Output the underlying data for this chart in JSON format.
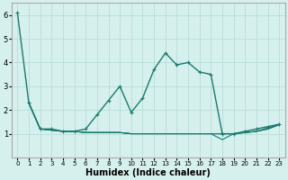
{
  "title": "",
  "xlabel": "Humidex (Indice chaleur)",
  "xlim": [
    -0.5,
    23.5
  ],
  "ylim": [
    0,
    6.5
  ],
  "yticks": [
    1,
    2,
    3,
    4,
    5,
    6
  ],
  "xticks": [
    0,
    1,
    2,
    3,
    4,
    5,
    6,
    7,
    8,
    9,
    10,
    11,
    12,
    13,
    14,
    15,
    16,
    17,
    18,
    19,
    20,
    21,
    22,
    23
  ],
  "bg_color": "#d6f0ed",
  "line_color": "#1a7a6e",
  "grid_color": "#b8ddd9",
  "lines": [
    {
      "x": [
        0,
        1,
        2,
        3,
        4,
        5,
        6,
        7,
        8,
        9,
        10,
        11,
        12,
        13,
        14,
        15,
        16,
        17,
        18,
        19,
        20,
        21,
        22,
        23
      ],
      "y": [
        6.1,
        2.3,
        1.2,
        1.2,
        1.1,
        1.1,
        1.2,
        1.8,
        2.4,
        3.0,
        1.9,
        2.5,
        3.7,
        4.4,
        3.9,
        4.0,
        3.6,
        3.5,
        1.0,
        1.0,
        1.1,
        1.2,
        1.3,
        1.4
      ],
      "has_marker": true
    },
    {
      "x": [
        1,
        2,
        3,
        4,
        5,
        6,
        7,
        8,
        9,
        10,
        11,
        12,
        13,
        14,
        15,
        16,
        17,
        18,
        19,
        20,
        21,
        22,
        23
      ],
      "y": [
        2.3,
        1.2,
        1.15,
        1.1,
        1.1,
        1.05,
        1.05,
        1.05,
        1.05,
        1.0,
        1.0,
        1.0,
        1.0,
        1.0,
        1.0,
        1.0,
        1.0,
        1.0,
        1.0,
        1.05,
        1.1,
        1.2,
        1.38
      ],
      "has_marker": false
    },
    {
      "x": [
        1,
        2,
        3,
        4,
        5,
        6,
        7,
        8,
        9,
        10,
        11,
        12,
        13,
        14,
        15,
        16,
        17,
        18,
        19,
        20,
        21,
        22,
        23
      ],
      "y": [
        2.3,
        1.2,
        1.15,
        1.1,
        1.1,
        1.05,
        1.05,
        1.05,
        1.05,
        1.0,
        1.0,
        1.0,
        1.0,
        1.0,
        1.0,
        1.0,
        1.0,
        0.75,
        1.0,
        1.05,
        1.1,
        1.2,
        1.38
      ],
      "has_marker": false
    },
    {
      "x": [
        1,
        2,
        3,
        4,
        5,
        6,
        7,
        8,
        9,
        10,
        11,
        12,
        13,
        14,
        15,
        16,
        17,
        18,
        19,
        20,
        21,
        22,
        23
      ],
      "y": [
        2.3,
        1.2,
        1.15,
        1.1,
        1.1,
        1.05,
        1.05,
        1.05,
        1.05,
        1.0,
        1.0,
        1.0,
        1.0,
        1.0,
        1.0,
        1.0,
        1.0,
        1.0,
        1.0,
        1.05,
        1.1,
        1.25,
        1.4
      ],
      "has_marker": false
    }
  ],
  "xlabel_fontsize": 7,
  "xlabel_fontweight": "bold",
  "tick_labelsize": 5,
  "linewidth_main": 1.0,
  "linewidth_other": 0.8,
  "marker": "+",
  "markersize": 3,
  "markeredgewidth": 0.8
}
